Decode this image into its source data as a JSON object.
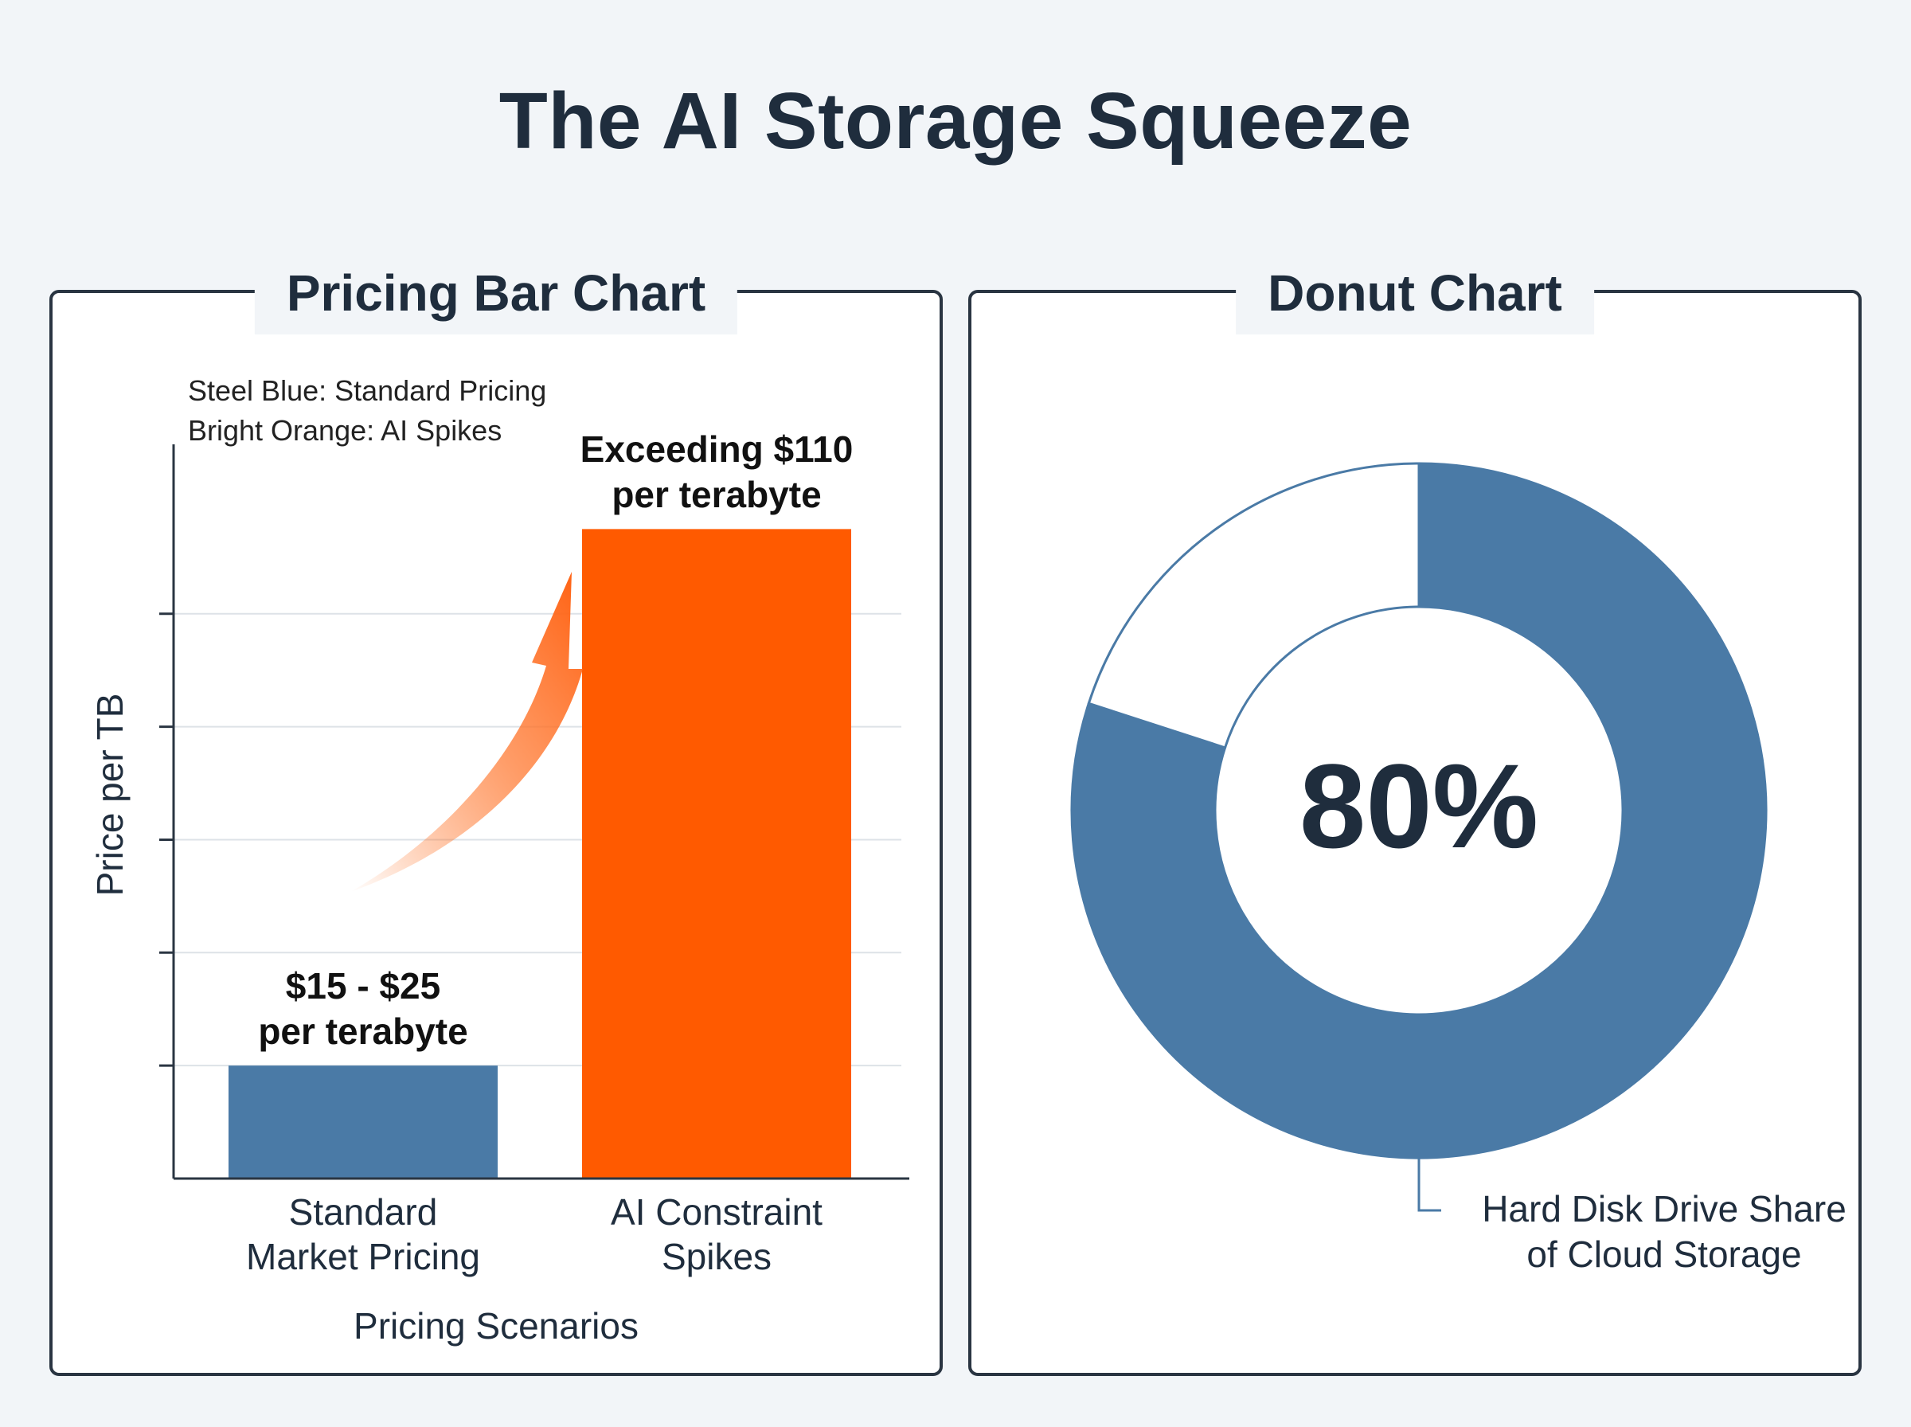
{
  "title": "The AI Storage Squeeze",
  "colors": {
    "standard": "#4a7aa6",
    "spike": "#ff5a00",
    "ink": "#1f2d3d"
  },
  "chart_data": [
    {
      "type": "bar",
      "panel_title": "Pricing Bar Chart",
      "legend": [
        "Steel Blue: Standard Pricing",
        "Bright Orange: AI Spikes"
      ],
      "categories": [
        "Standard\nMarket Pricing",
        "AI Constraint\nSpikes"
      ],
      "category_lines": [
        [
          "Standard",
          "Market Pricing"
        ],
        [
          "AI Constraint",
          "Spikes"
        ]
      ],
      "values": [
        20,
        115
      ],
      "bar_colors": [
        "#4a7aa6",
        "#ff5a00"
      ],
      "data_labels": [
        [
          "$15 - $25",
          "per terabyte"
        ],
        [
          "Exceeding $110",
          "per terabyte"
        ]
      ],
      "xlabel": "Pricing Scenarios",
      "ylabel": "Price per TB",
      "ylim": [
        0,
        130
      ],
      "grid": true,
      "legend_position": "top-left"
    },
    {
      "type": "pie",
      "panel_title": "Donut Chart",
      "center_label": "80%",
      "slices": [
        {
          "name": "Hard Disk Drive Share of Cloud Storage",
          "value": 80,
          "color": "#4a7aa6"
        },
        {
          "name": "",
          "value": 20,
          "color": "#ffffff"
        }
      ],
      "slice_label_lines": [
        "Hard Disk Drive Share",
        "of Cloud Storage"
      ]
    }
  ]
}
